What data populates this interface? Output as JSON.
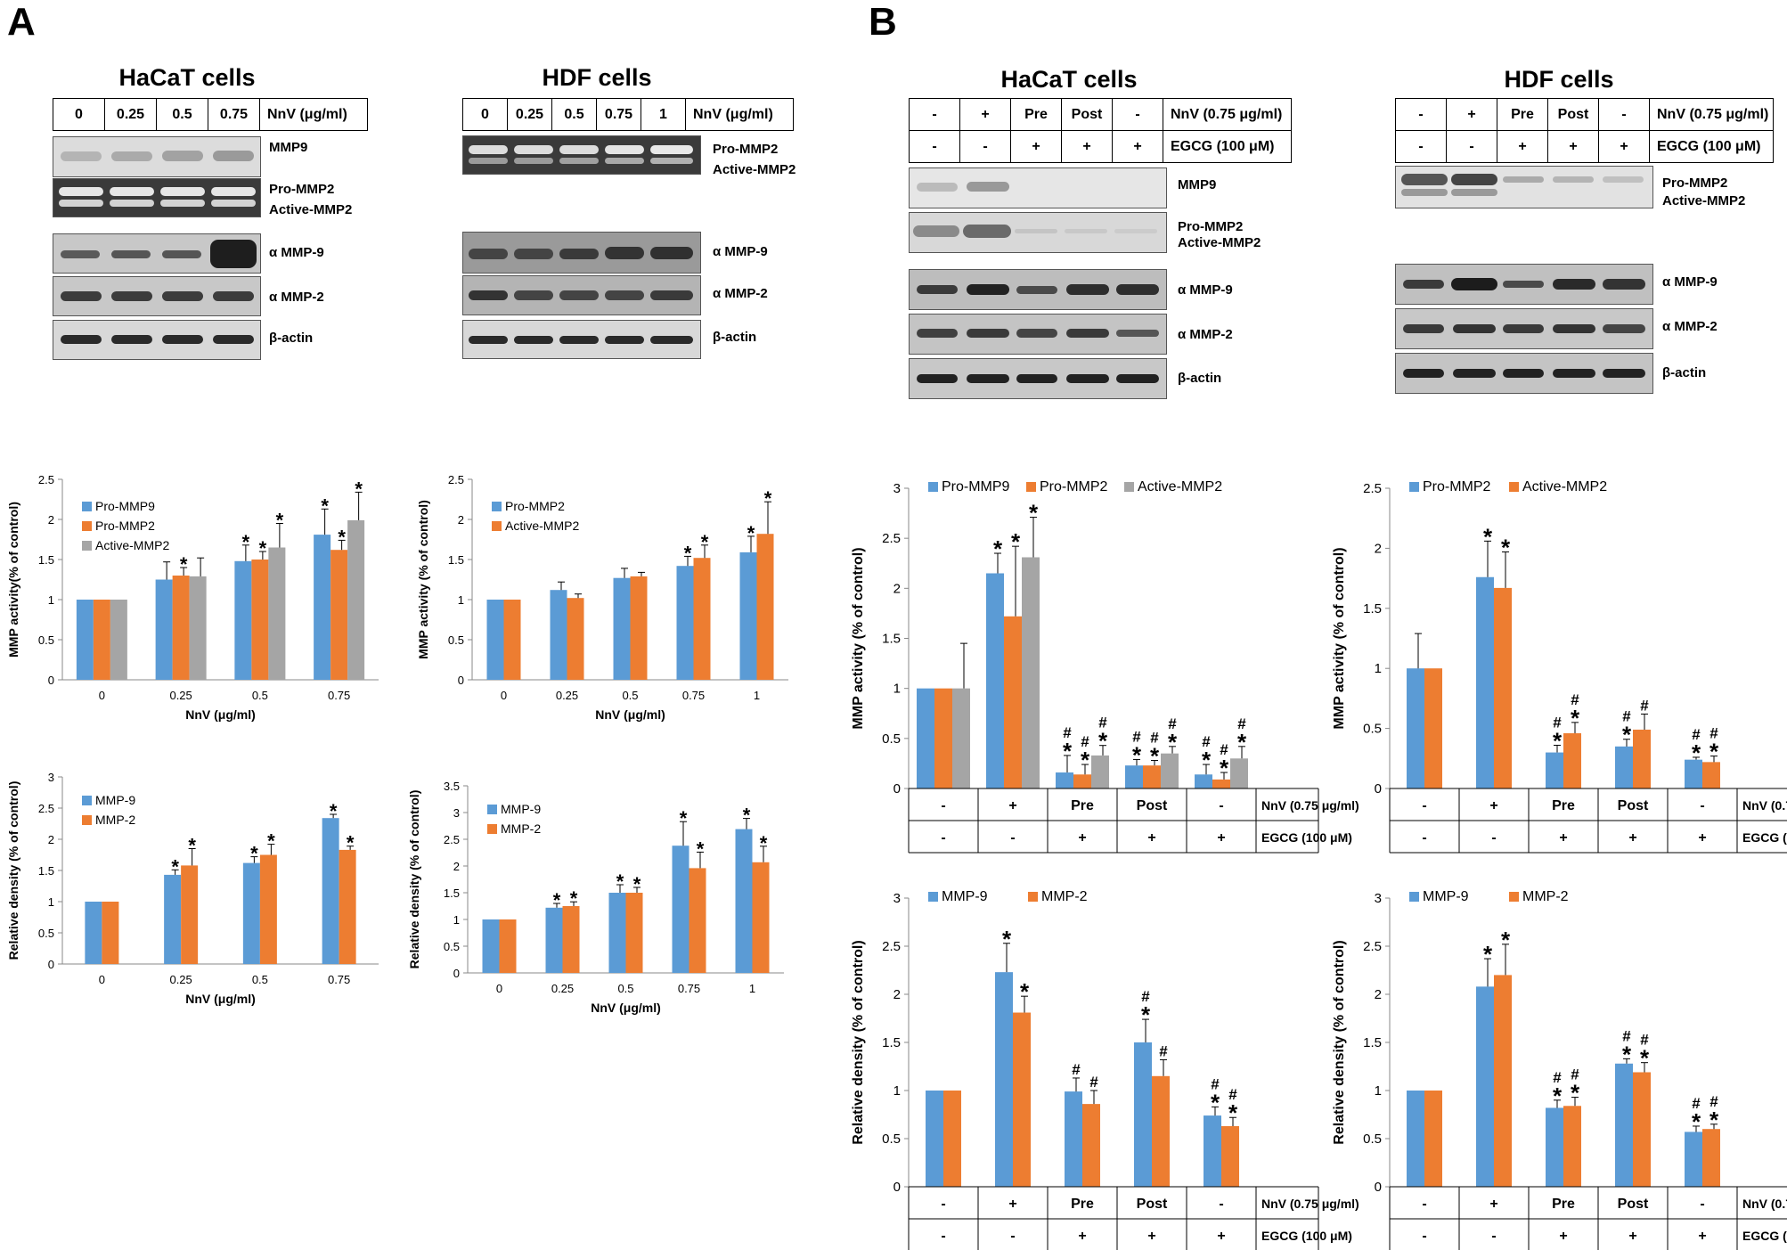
{
  "panels": {
    "a": "A",
    "b": "B"
  },
  "lane_tables": {
    "a_hacat": {
      "title": "HaCaT cells",
      "lanes": [
        "0",
        "0.25",
        "0.5",
        "0.75"
      ],
      "label": "NnV (μg/ml)"
    },
    "a_hdf": {
      "title": "HDF cells",
      "lanes": [
        "0",
        "0.25",
        "0.5",
        "0.75",
        "1"
      ],
      "label": "NnV (μg/ml)"
    },
    "b_hacat": {
      "title": "HaCaT cells",
      "row1": [
        "-",
        "+",
        "Pre",
        "Post",
        "-"
      ],
      "row1_label": "NnV (0.75 μg/ml)",
      "row2": [
        "-",
        "-",
        "+",
        "+",
        "+"
      ],
      "row2_label": "EGCG (100 μM)"
    },
    "b_hdf": {
      "title": "HDF cells",
      "row1": [
        "-",
        "+",
        "Pre",
        "Post",
        "-"
      ],
      "row1_label": "NnV (0.75 μg/ml)",
      "row2": [
        "-",
        "-",
        "+",
        "+",
        "+"
      ],
      "row2_label": "EGCG (100 μM)"
    }
  },
  "blot_labels": {
    "a_hacat": {
      "mmp9": "MMP9",
      "pro": "Pro-MMP2",
      "active": "Active-MMP2",
      "amm9": "α MMP-9",
      "amm2": "α MMP-2",
      "actin": "β-actin"
    },
    "a_hdf": {
      "pro": "Pro-MMP2",
      "active": "Active-MMP2",
      "amm9": "α MMP-9",
      "amm2": "α MMP-2",
      "actin": "β-actin"
    },
    "b_hacat": {
      "mmp9": "MMP9",
      "pro": "Pro-MMP2",
      "active": "Active-MMP2",
      "amm9": "α  MMP-9",
      "amm2": "α  MMP-2",
      "actin": "β-actin"
    },
    "b_hdf": {
      "pro": "Pro-MMP2",
      "active": "Active-MMP2",
      "amm9": "α  MMP-9",
      "amm2": "α  MMP-2",
      "actin": "β-actin"
    }
  },
  "colors": {
    "blue": "#5B9BD5",
    "orange": "#ED7D31",
    "gray": "#A5A5A5"
  },
  "chart_data": [
    {
      "id": "a1",
      "type": "bar",
      "ylabel": "MMP activity(% of control)",
      "xlabel": "NnV (μg/ml)",
      "categories": [
        "0",
        "0.25",
        "0.5",
        "0.75"
      ],
      "ylim": [
        0,
        2.5
      ],
      "yticks": [
        "0",
        "0.5",
        "1",
        "1.5",
        "2",
        "2.5"
      ],
      "legend": "top-left",
      "series": [
        {
          "name": "Pro-MMP9",
          "color": "blue",
          "values": [
            1.0,
            1.25,
            1.48,
            1.81
          ],
          "errors": [
            0.0,
            0.22,
            0.2,
            0.32
          ],
          "marks": [
            "",
            "",
            "*",
            "*"
          ]
        },
        {
          "name": "Pro-MMP2",
          "color": "orange",
          "values": [
            1.0,
            1.3,
            1.5,
            1.62
          ],
          "errors": [
            0.0,
            0.1,
            0.1,
            0.12
          ],
          "marks": [
            "",
            "*",
            "*",
            "*"
          ]
        },
        {
          "name": "Active-MMP2",
          "color": "gray",
          "values": [
            1.0,
            1.29,
            1.65,
            1.99
          ],
          "errors": [
            0.0,
            0.23,
            0.3,
            0.35
          ],
          "marks": [
            "",
            "",
            "*",
            "*"
          ]
        }
      ]
    },
    {
      "id": "a2",
      "type": "bar",
      "ylabel": "MMP activity (% of control)",
      "xlabel": "NnV (μg/ml)",
      "categories": [
        "0",
        "0.25",
        "0.5",
        "0.75",
        "1"
      ],
      "ylim": [
        0,
        2.5
      ],
      "yticks": [
        "0",
        "0.5",
        "1",
        "1.5",
        "2",
        "2.5"
      ],
      "legend": "top-left",
      "series": [
        {
          "name": "Pro-MMP2",
          "color": "blue",
          "values": [
            1.0,
            1.12,
            1.27,
            1.42,
            1.59
          ],
          "errors": [
            0.0,
            0.1,
            0.12,
            0.12,
            0.2
          ],
          "marks": [
            "",
            "",
            "",
            "*",
            "*"
          ]
        },
        {
          "name": "Active-MMP2",
          "color": "orange",
          "values": [
            1.0,
            1.02,
            1.29,
            1.52,
            1.82
          ],
          "errors": [
            0.0,
            0.05,
            0.05,
            0.16,
            0.4
          ],
          "marks": [
            "",
            "",
            "",
            "*",
            "*"
          ]
        }
      ]
    },
    {
      "id": "a3",
      "type": "bar",
      "ylabel": "Relative density (% of control)",
      "xlabel": "NnV (μg/ml)",
      "categories": [
        "0",
        "0.25",
        "0.5",
        "0.75"
      ],
      "ylim": [
        0,
        3
      ],
      "yticks": [
        "0",
        "0.5",
        "1",
        "1.5",
        "2",
        "2.5",
        "3"
      ],
      "legend": "top-left",
      "series": [
        {
          "name": "MMP-9",
          "color": "blue",
          "values": [
            1.0,
            1.43,
            1.62,
            2.34
          ],
          "errors": [
            0.0,
            0.08,
            0.1,
            0.06
          ],
          "marks": [
            "",
            "*",
            "*",
            "*"
          ]
        },
        {
          "name": "MMP-2",
          "color": "orange",
          "values": [
            1.0,
            1.58,
            1.75,
            1.83
          ],
          "errors": [
            0.0,
            0.27,
            0.17,
            0.06
          ],
          "marks": [
            "",
            "*",
            "*",
            "*"
          ]
        }
      ]
    },
    {
      "id": "a4",
      "type": "bar",
      "ylabel": "Relative density (% of control)",
      "xlabel": "NnV (μg/ml)",
      "categories": [
        "0",
        "0.25",
        "0.5",
        "0.75",
        "1"
      ],
      "ylim": [
        0,
        3.5
      ],
      "yticks": [
        "0",
        "0.5",
        "1",
        "1.5",
        "2",
        "2.5",
        "3",
        "3.5"
      ],
      "legend": "top-left",
      "series": [
        {
          "name": "MMP-9",
          "color": "blue",
          "values": [
            1.0,
            1.22,
            1.5,
            2.38,
            2.69
          ],
          "errors": [
            0.0,
            0.08,
            0.15,
            0.45,
            0.2
          ],
          "marks": [
            "",
            "*",
            "*",
            "*",
            "*"
          ]
        },
        {
          "name": "MMP-2",
          "color": "orange",
          "values": [
            1.0,
            1.25,
            1.5,
            1.96,
            2.07
          ],
          "errors": [
            0.0,
            0.08,
            0.1,
            0.3,
            0.3
          ],
          "marks": [
            "",
            "*",
            "*",
            "*",
            "*"
          ]
        }
      ]
    },
    {
      "id": "b1",
      "type": "bar",
      "ylabel": "MMP activity (% of control)",
      "xlabel": "",
      "categories": [
        "-/-",
        "+/-",
        "Pre/+",
        "Post/+",
        "-/+"
      ],
      "ylim": [
        0,
        3
      ],
      "yticks": [
        "0",
        "0.5",
        "1",
        "1.5",
        "2",
        "2.5",
        "3"
      ],
      "legend": "top-left",
      "series": [
        {
          "name": "Pro-MMP9",
          "color": "blue",
          "values": [
            1.0,
            2.15,
            0.16,
            0.23,
            0.14
          ],
          "errors": [
            0.0,
            0.2,
            0.17,
            0.06,
            0.1
          ],
          "marks": [
            "",
            "*",
            "#\n*",
            "#\n*",
            "#\n*"
          ]
        },
        {
          "name": "Pro-MMP2",
          "color": "orange",
          "values": [
            1.0,
            1.72,
            0.14,
            0.23,
            0.09
          ],
          "errors": [
            0.0,
            0.7,
            0.1,
            0.05,
            0.07
          ],
          "marks": [
            "",
            "*",
            "#\n*",
            "#\n*",
            "#\n*"
          ]
        },
        {
          "name": "Active-MMP2",
          "color": "gray",
          "values": [
            1.0,
            2.31,
            0.33,
            0.35,
            0.3
          ],
          "errors": [
            0.45,
            0.4,
            0.1,
            0.07,
            0.12
          ],
          "marks": [
            "",
            "*",
            "#\n*",
            "#\n*",
            "#\n*"
          ]
        }
      ]
    },
    {
      "id": "b2",
      "type": "bar",
      "ylabel": "MMP activity (% of control)",
      "xlabel": "",
      "categories": [
        "-/-",
        "+/-",
        "Pre/+",
        "Post/+",
        "-/+"
      ],
      "ylim": [
        0,
        2.5
      ],
      "yticks": [
        "0",
        "0.5",
        "1",
        "1.5",
        "2",
        "2.5"
      ],
      "legend": "top-left",
      "series": [
        {
          "name": "Pro-MMP2",
          "color": "blue",
          "values": [
            1.0,
            1.76,
            0.3,
            0.35,
            0.24
          ],
          "errors": [
            0.29,
            0.3,
            0.06,
            0.06,
            0.02
          ],
          "marks": [
            "",
            "*",
            "#\n*",
            "#\n*",
            "#\n*"
          ]
        },
        {
          "name": "Active-MMP2",
          "color": "orange",
          "values": [
            1.0,
            1.67,
            0.46,
            0.49,
            0.22
          ],
          "errors": [
            0.0,
            0.3,
            0.09,
            0.13,
            0.05
          ],
          "marks": [
            "",
            "*",
            "#\n*",
            "#",
            "#\n*"
          ]
        }
      ]
    },
    {
      "id": "b3",
      "type": "bar",
      "ylabel": "Relative density (% of control)",
      "xlabel": "",
      "categories": [
        "-/-",
        "+/-",
        "Pre/+",
        "Post/+",
        "-/+"
      ],
      "ylim": [
        0,
        3
      ],
      "yticks": [
        "0",
        "0.5",
        "1",
        "1.5",
        "2",
        "2.5",
        "3"
      ],
      "legend": "top-left",
      "series": [
        {
          "name": "MMP-9",
          "color": "blue",
          "values": [
            1.0,
            2.23,
            0.99,
            1.5,
            0.74
          ],
          "errors": [
            0.0,
            0.3,
            0.14,
            0.24,
            0.09
          ],
          "marks": [
            "",
            "*",
            "#",
            "#\n*",
            "#\n*"
          ]
        },
        {
          "name": "MMP-2",
          "color": "orange",
          "values": [
            1.0,
            1.81,
            0.86,
            1.15,
            0.63
          ],
          "errors": [
            0.0,
            0.17,
            0.14,
            0.17,
            0.09
          ],
          "marks": [
            "",
            "*",
            "#",
            "#",
            "#\n*"
          ]
        }
      ]
    },
    {
      "id": "b4",
      "type": "bar",
      "ylabel": "Relative density (% of control)",
      "xlabel": "",
      "categories": [
        "-/-",
        "+/-",
        "Pre/+",
        "Post/+",
        "-/+"
      ],
      "ylim": [
        0,
        3
      ],
      "yticks": [
        "0",
        "0.5",
        "1",
        "1.5",
        "2",
        "2.5",
        "3"
      ],
      "legend": "top-left",
      "series": [
        {
          "name": "MMP-9",
          "color": "blue",
          "values": [
            1.0,
            2.08,
            0.82,
            1.28,
            0.57
          ],
          "errors": [
            0.0,
            0.29,
            0.08,
            0.05,
            0.06
          ],
          "marks": [
            "",
            "*",
            "#\n*",
            "#\n*",
            "#\n*"
          ]
        },
        {
          "name": "MMP-2",
          "color": "orange",
          "values": [
            1.0,
            2.2,
            0.84,
            1.19,
            0.6
          ],
          "errors": [
            0.0,
            0.32,
            0.09,
            0.1,
            0.05
          ],
          "marks": [
            "",
            "*",
            "#\n*",
            "#\n*",
            "#\n*"
          ]
        }
      ]
    }
  ],
  "b_chart_tables": {
    "row1": [
      "-",
      "+",
      "Pre",
      "Post",
      "-"
    ],
    "row1_label": "NnV (0.75 μg/ml)",
    "row2": [
      "-",
      "-",
      "+",
      "+",
      "+"
    ],
    "row2_label": "EGCG (100 μM)"
  }
}
